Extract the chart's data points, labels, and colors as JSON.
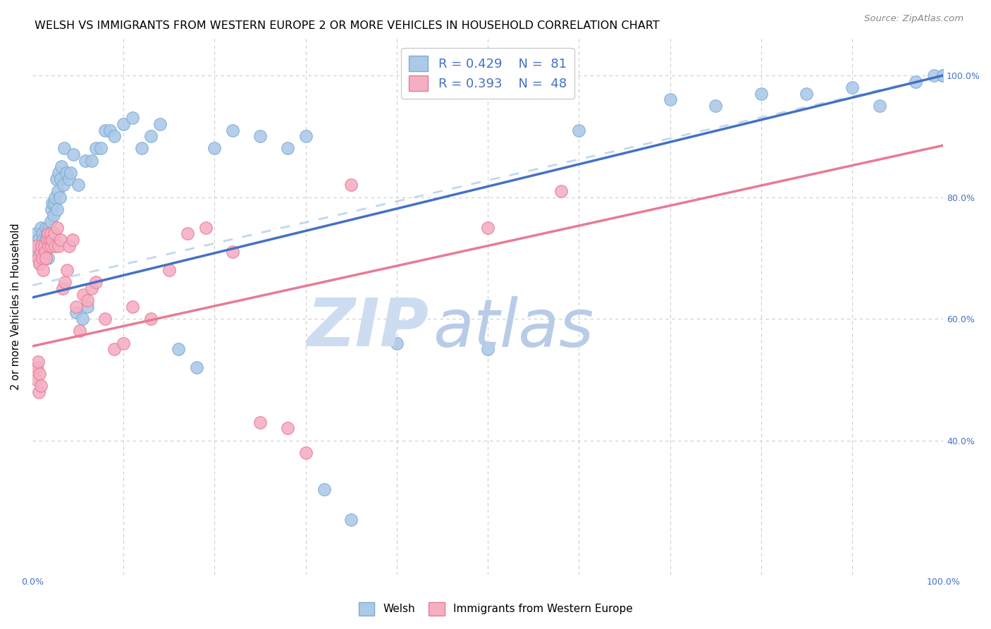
{
  "title": "WELSH VS IMMIGRANTS FROM WESTERN EUROPE 2 OR MORE VEHICLES IN HOUSEHOLD CORRELATION CHART",
  "source": "Source: ZipAtlas.com",
  "ylabel": "2 or more Vehicles in Household",
  "legend_blue_r": "R = 0.429",
  "legend_blue_n": "N =  81",
  "legend_pink_r": "R = 0.393",
  "legend_pink_n": "N =  48",
  "legend_label_blue": "Welsh",
  "legend_label_pink": "Immigrants from Western Europe",
  "blue_color": "#adc9e8",
  "pink_color": "#f5afc2",
  "blue_edge": "#7aadd4",
  "pink_edge": "#e87a96",
  "regression_blue": "#4472c4",
  "regression_pink": "#e87a96",
  "regression_blue_dash": "#c0d8f0",
  "blue_line_intercept": 0.635,
  "blue_line_slope": 0.365,
  "pink_line_intercept": 0.555,
  "pink_line_slope": 0.33,
  "dash_line_intercept": 0.655,
  "dash_line_slope": 0.345,
  "xlim": [
    0.0,
    1.0
  ],
  "ylim_low": 0.18,
  "ylim_high": 1.06,
  "grid_color": "#cccccc",
  "watermark_zip_color": "#cddcf0",
  "watermark_atlas_color": "#b8cce8",
  "background_color": "#ffffff",
  "title_fontsize": 11.5,
  "source_fontsize": 9.5,
  "legend_fontsize": 13,
  "scatter_size": 160,
  "blue_x": [
    0.003,
    0.004,
    0.005,
    0.006,
    0.007,
    0.008,
    0.009,
    0.01,
    0.011,
    0.012,
    0.012,
    0.013,
    0.014,
    0.015,
    0.015,
    0.016,
    0.016,
    0.017,
    0.017,
    0.018,
    0.018,
    0.019,
    0.019,
    0.02,
    0.021,
    0.022,
    0.022,
    0.023,
    0.024,
    0.025,
    0.026,
    0.027,
    0.028,
    0.029,
    0.03,
    0.031,
    0.032,
    0.034,
    0.035,
    0.037,
    0.04,
    0.042,
    0.045,
    0.048,
    0.05,
    0.055,
    0.058,
    0.06,
    0.065,
    0.07,
    0.075,
    0.08,
    0.085,
    0.09,
    0.1,
    0.11,
    0.12,
    0.13,
    0.14,
    0.16,
    0.18,
    0.2,
    0.22,
    0.25,
    0.28,
    0.3,
    0.32,
    0.35,
    0.4,
    0.5,
    0.6,
    0.7,
    0.75,
    0.8,
    0.85,
    0.9,
    0.93,
    0.97,
    0.99,
    1.0,
    1.0
  ],
  "blue_y": [
    0.72,
    0.74,
    0.71,
    0.73,
    0.72,
    0.69,
    0.75,
    0.72,
    0.74,
    0.71,
    0.73,
    0.7,
    0.72,
    0.75,
    0.73,
    0.72,
    0.74,
    0.7,
    0.73,
    0.72,
    0.75,
    0.74,
    0.73,
    0.76,
    0.78,
    0.79,
    0.74,
    0.77,
    0.79,
    0.8,
    0.83,
    0.78,
    0.81,
    0.84,
    0.8,
    0.83,
    0.85,
    0.82,
    0.88,
    0.84,
    0.83,
    0.84,
    0.87,
    0.61,
    0.82,
    0.6,
    0.86,
    0.62,
    0.86,
    0.88,
    0.88,
    0.91,
    0.91,
    0.9,
    0.92,
    0.93,
    0.88,
    0.9,
    0.92,
    0.55,
    0.52,
    0.88,
    0.91,
    0.9,
    0.88,
    0.9,
    0.32,
    0.27,
    0.56,
    0.55,
    0.91,
    0.96,
    0.95,
    0.97,
    0.97,
    0.98,
    0.95,
    0.99,
    1.0,
    1.0,
    1.0
  ],
  "pink_x": [
    0.004,
    0.006,
    0.008,
    0.009,
    0.01,
    0.011,
    0.012,
    0.013,
    0.014,
    0.015,
    0.016,
    0.017,
    0.018,
    0.019,
    0.02,
    0.021,
    0.022,
    0.024,
    0.025,
    0.027,
    0.029,
    0.031,
    0.033,
    0.036,
    0.038,
    0.04,
    0.044,
    0.048,
    0.052,
    0.056,
    0.06,
    0.065,
    0.07,
    0.08,
    0.09,
    0.1,
    0.11,
    0.13,
    0.15,
    0.17,
    0.19,
    0.22,
    0.25,
    0.28,
    0.3,
    0.35,
    0.5,
    0.58
  ],
  "pink_y": [
    0.72,
    0.7,
    0.69,
    0.71,
    0.72,
    0.7,
    0.68,
    0.72,
    0.71,
    0.7,
    0.73,
    0.74,
    0.72,
    0.73,
    0.74,
    0.72,
    0.73,
    0.74,
    0.72,
    0.75,
    0.72,
    0.73,
    0.65,
    0.66,
    0.68,
    0.72,
    0.73,
    0.62,
    0.58,
    0.64,
    0.63,
    0.65,
    0.66,
    0.6,
    0.55,
    0.56,
    0.62,
    0.6,
    0.68,
    0.74,
    0.75,
    0.71,
    0.43,
    0.42,
    0.38,
    0.82,
    0.75,
    0.81
  ],
  "pink_extra_low_x": [
    0.004,
    0.005,
    0.006,
    0.007,
    0.008,
    0.009
  ],
  "pink_extra_low_y": [
    0.5,
    0.52,
    0.53,
    0.48,
    0.51,
    0.49
  ]
}
